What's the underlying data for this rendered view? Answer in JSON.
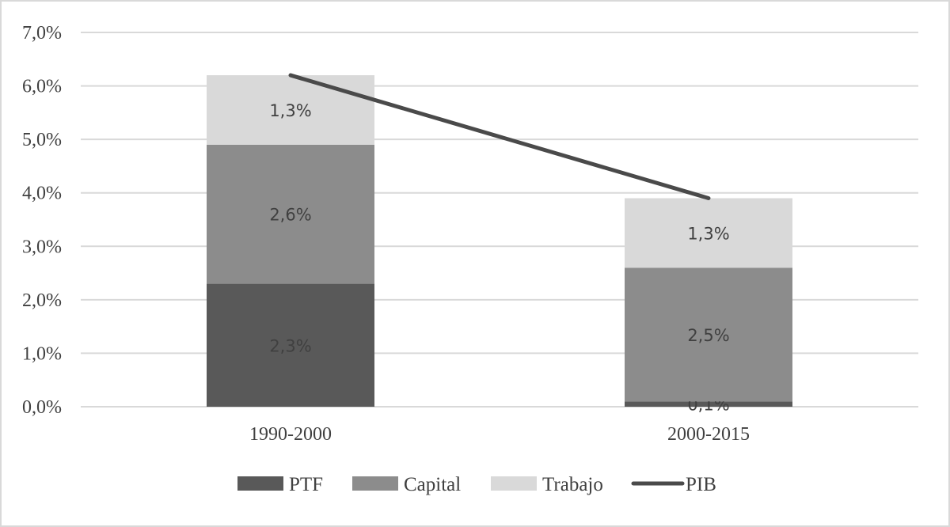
{
  "chart_data": {
    "type": "bar",
    "stacked": true,
    "categories": [
      "1990-2000",
      "2000-2015"
    ],
    "series": [
      {
        "name": "PTF",
        "kind": "bar",
        "color": "#595959",
        "values": [
          2.3,
          0.1
        ],
        "labels": [
          "2,3%",
          "0,1%"
        ]
      },
      {
        "name": "Capital",
        "kind": "bar",
        "color": "#8c8c8c",
        "values": [
          2.6,
          2.5
        ],
        "labels": [
          "2,6%",
          "2,5%"
        ]
      },
      {
        "name": "Trabajo",
        "kind": "bar",
        "color": "#d9d9d9",
        "values": [
          1.3,
          1.3
        ],
        "labels": [
          "1,3%",
          "1,3%"
        ]
      },
      {
        "name": "PIB",
        "kind": "line",
        "color": "#4a4a4a",
        "values": [
          6.2,
          3.9
        ]
      }
    ],
    "ylim": [
      0,
      7
    ],
    "yticks": [
      0,
      1,
      2,
      3,
      4,
      5,
      6,
      7
    ],
    "ytick_labels": [
      "0,0%",
      "1,0%",
      "2,0%",
      "3,0%",
      "4,0%",
      "5,0%",
      "6,0%",
      "7,0%"
    ],
    "title": "",
    "xlabel": "",
    "ylabel": "",
    "grid": true,
    "legend_position": "bottom"
  }
}
